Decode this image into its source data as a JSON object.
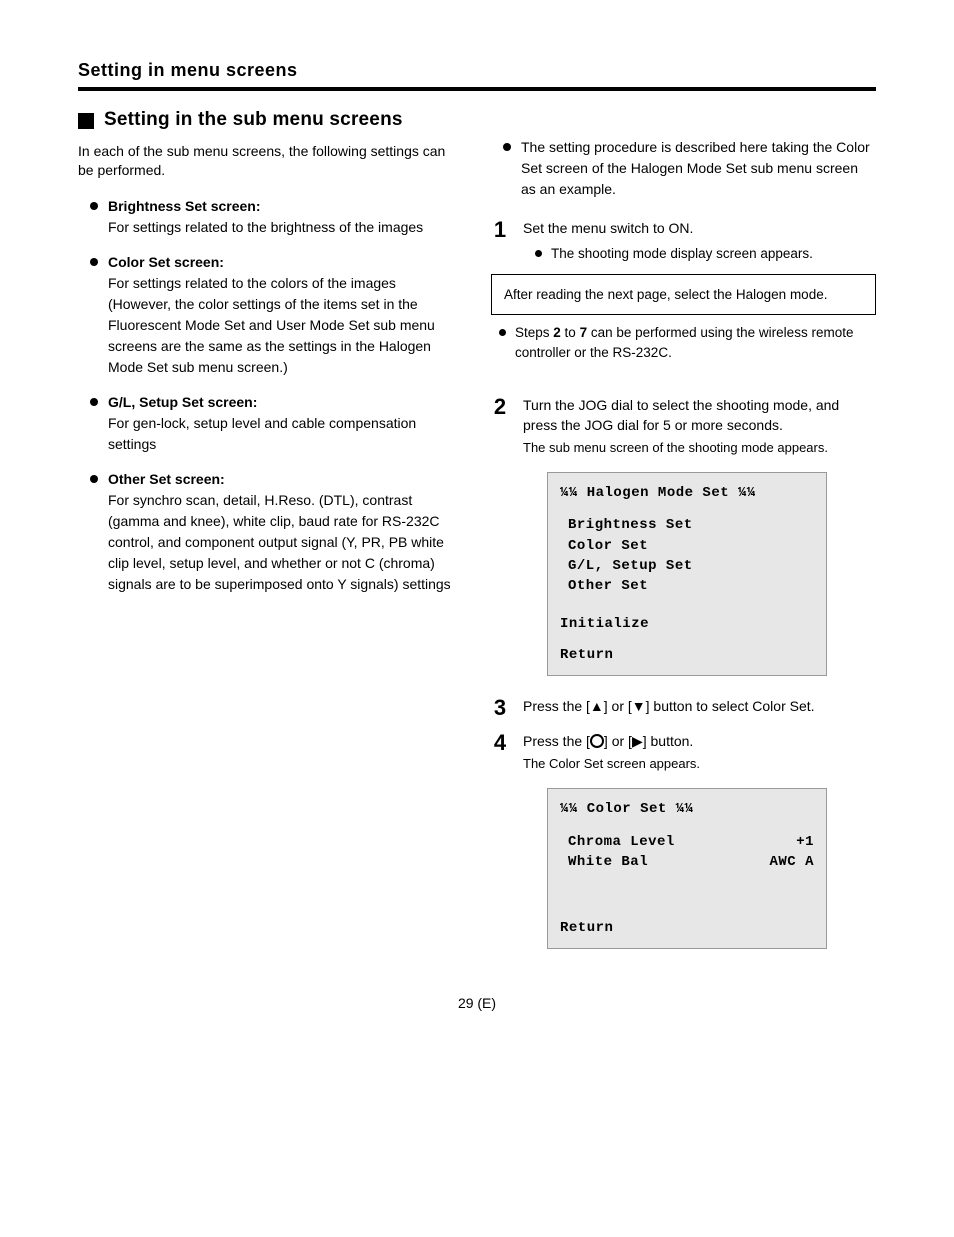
{
  "chapter": "Setting in menu screens",
  "page_label": "29 (E)",
  "left": {
    "section_title": "Setting in the sub menu screens",
    "intro": "In each of the sub menu screens, the following settings can be performed.",
    "bullets": [
      {
        "head": "Brightness Set screen:",
        "body": "For settings related to the brightness of the images"
      },
      {
        "head": "Color Set screen:",
        "body": "For settings related to the colors of the images\n(However, the color settings of the items set in the Fluorescent Mode Set and User Mode Set sub menu screens are the same as the settings in the Halogen Mode Set sub menu screen.)"
      },
      {
        "head": "G/L, Setup Set screen:",
        "body": "For gen-lock, setup level and cable compensation settings"
      },
      {
        "head": "Other Set screen:",
        "body": "For synchro scan, detail, H.Reso. (DTL), contrast (gamma and knee), white clip, baud rate for RS-232C control, and component output signal (Y, PR, PB white clip level, setup level, and whether or not C (chroma) signals are to be superimposed onto Y signals) settings"
      }
    ]
  },
  "right": {
    "top_bullet": "The setting procedure is described here taking the Color Set screen of the Halogen Mode Set sub menu screen as an example.",
    "steps": [
      {
        "n": "1",
        "text": "Set the menu switch to ON.",
        "sub": "The shooting mode display screen appears.",
        "note": "After reading the next page, select the Halogen mode.",
        "after_note_html": "Steps <b class='num'>2</b> to <b class='num'>7</b> can be performed using the wireless remote controller or the RS-232C."
      },
      {
        "n": "2",
        "text": "Turn the JOG dial to select the shooting mode, and press the JOG dial for 5 or more seconds.",
        "caption": "The sub menu screen of the shooting mode appears.",
        "menu": {
          "title": "¼¼ Halogen Mode Set ¼¼",
          "items": [
            "Brightness Set",
            "Color Set",
            "G/L, Setup Set",
            "Other Set"
          ],
          "footer1": "Initialize",
          "footer2": "Return"
        }
      },
      {
        "n": "3",
        "text_html": "Press the [<span class='arrow'>▲</span>] or [<span class='arrow'>▼</span>] button to select Color Set."
      },
      {
        "n": "4",
        "text_html": "Press the [<span class='circ'></span>] or [<span class='arrow'>▶</span>] button.",
        "caption": "The Color Set screen appears.",
        "menu2": {
          "title": "¼¼ Color Set ¼¼",
          "rows": [
            {
              "k": "Chroma Level",
              "v": "+1"
            },
            {
              "k": "White Bal",
              "v": "AWC A"
            }
          ],
          "footer": "Return"
        }
      }
    ]
  }
}
